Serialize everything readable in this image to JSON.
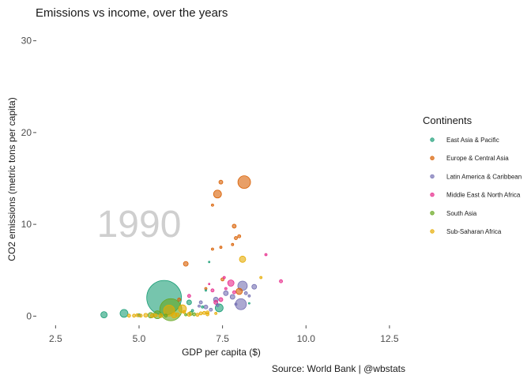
{
  "chart_data": {
    "type": "scatter",
    "title": "Emissions vs income, over the years",
    "xlabel": "GDP per capita ($)",
    "ylabel": "CO2 emissions (metric tons per capita)",
    "caption": "Source: World Bank | @wbstats",
    "annotation": "1990",
    "xlim": [
      1.9,
      13.0
    ],
    "ylim": [
      -1.0,
      31.0
    ],
    "x_ticks": [
      2.5,
      5.0,
      7.5,
      10.0,
      12.5
    ],
    "x_tick_labels": [
      "2.5",
      "5.0",
      "7.5",
      "10.0",
      "12.5"
    ],
    "y_ticks": [
      0,
      10,
      20,
      30
    ],
    "y_tick_labels": [
      "0",
      "10",
      "20",
      "30"
    ],
    "grid": false,
    "legend": {
      "title": "Continents",
      "position": "right",
      "entries": [
        {
          "key": "eap",
          "label": "East Asia & Pacific",
          "color": "#1B9E77"
        },
        {
          "key": "eca",
          "label": "Europe & Central Asia",
          "color": "#D95F02"
        },
        {
          "key": "lac",
          "label": "Latin America & Caribbean",
          "color": "#7570B3"
        },
        {
          "key": "mena",
          "label": "Middle East & North Africa",
          "color": "#E7298A"
        },
        {
          "key": "sa",
          "label": "South Asia",
          "color": "#66A61E"
        },
        {
          "key": "ssa",
          "label": "Sub-Saharan Africa",
          "color": "#E6AB02"
        }
      ]
    },
    "series": [
      {
        "key": "eap",
        "points": [
          {
            "x": 5.75,
            "y": 2.0,
            "size": 22
          },
          {
            "x": 3.95,
            "y": 0.15,
            "size": 4
          },
          {
            "x": 4.55,
            "y": 0.3,
            "size": 5
          },
          {
            "x": 7.4,
            "y": 0.9,
            "size": 5
          },
          {
            "x": 7.1,
            "y": 5.9,
            "size": 1
          },
          {
            "x": 6.5,
            "y": 1.5,
            "size": 3
          },
          {
            "x": 7.0,
            "y": 2.8,
            "size": 1
          },
          {
            "x": 8.3,
            "y": 1.4,
            "size": 1
          },
          {
            "x": 6.9,
            "y": 1.0,
            "size": 1.5
          },
          {
            "x": 5.0,
            "y": 0.1,
            "size": 2
          },
          {
            "x": 6.6,
            "y": 0.6,
            "size": 1.5
          }
        ]
      },
      {
        "key": "eca",
        "points": [
          {
            "x": 8.15,
            "y": 14.6,
            "size": 8
          },
          {
            "x": 7.35,
            "y": 13.3,
            "size": 5
          },
          {
            "x": 7.45,
            "y": 14.6,
            "size": 2.5
          },
          {
            "x": 7.2,
            "y": 12.1,
            "size": 1.5
          },
          {
            "x": 7.85,
            "y": 9.8,
            "size": 2.5
          },
          {
            "x": 8.0,
            "y": 8.7,
            "size": 2
          },
          {
            "x": 7.9,
            "y": 8.5,
            "size": 2
          },
          {
            "x": 7.8,
            "y": 7.8,
            "size": 1.5
          },
          {
            "x": 7.45,
            "y": 7.5,
            "size": 1.5
          },
          {
            "x": 7.2,
            "y": 7.3,
            "size": 1.5
          },
          {
            "x": 6.4,
            "y": 5.7,
            "size": 3
          },
          {
            "x": 8.0,
            "y": 2.7,
            "size": 4
          },
          {
            "x": 7.5,
            "y": 4.0,
            "size": 2
          },
          {
            "x": 7.0,
            "y": 3.0,
            "size": 1.5
          },
          {
            "x": 6.2,
            "y": 1.8,
            "size": 2
          }
        ]
      },
      {
        "key": "lac",
        "points": [
          {
            "x": 8.05,
            "y": 1.3,
            "size": 7
          },
          {
            "x": 8.1,
            "y": 3.3,
            "size": 6
          },
          {
            "x": 8.45,
            "y": 3.2,
            "size": 3
          },
          {
            "x": 7.6,
            "y": 2.5,
            "size": 3
          },
          {
            "x": 7.8,
            "y": 2.1,
            "size": 3
          },
          {
            "x": 7.3,
            "y": 1.8,
            "size": 3
          },
          {
            "x": 7.0,
            "y": 1.0,
            "size": 2.5
          },
          {
            "x": 6.85,
            "y": 1.5,
            "size": 2
          },
          {
            "x": 7.15,
            "y": 0.7,
            "size": 2
          },
          {
            "x": 8.2,
            "y": 2.5,
            "size": 2
          },
          {
            "x": 7.35,
            "y": 1.2,
            "size": 2
          },
          {
            "x": 7.9,
            "y": 1.3,
            "size": 1.5
          },
          {
            "x": 8.3,
            "y": 2.2,
            "size": 1.5
          },
          {
            "x": 6.8,
            "y": 1.1,
            "size": 1.5
          }
        ]
      },
      {
        "key": "mena",
        "points": [
          {
            "x": 9.25,
            "y": 3.8,
            "size": 2
          },
          {
            "x": 8.8,
            "y": 6.7,
            "size": 1.5
          },
          {
            "x": 7.75,
            "y": 3.6,
            "size": 4
          },
          {
            "x": 7.45,
            "y": 1.8,
            "size": 2.5
          },
          {
            "x": 7.3,
            "y": 1.5,
            "size": 2.5
          },
          {
            "x": 7.85,
            "y": 2.6,
            "size": 2
          },
          {
            "x": 7.2,
            "y": 2.8,
            "size": 2
          },
          {
            "x": 6.5,
            "y": 2.2,
            "size": 2
          },
          {
            "x": 7.55,
            "y": 4.2,
            "size": 1.5
          },
          {
            "x": 7.1,
            "y": 3.5,
            "size": 1
          },
          {
            "x": 7.6,
            "y": 3.0,
            "size": 1.5
          }
        ]
      },
      {
        "key": "sa",
        "points": [
          {
            "x": 5.95,
            "y": 0.7,
            "size": 14
          },
          {
            "x": 5.55,
            "y": 0.15,
            "size": 5
          },
          {
            "x": 5.35,
            "y": 0.1,
            "size": 3.5
          },
          {
            "x": 6.55,
            "y": 0.3,
            "size": 2.5
          },
          {
            "x": 6.65,
            "y": 0.2,
            "size": 2
          },
          {
            "x": 5.8,
            "y": 0.05,
            "size": 2
          },
          {
            "x": 6.4,
            "y": 0.15,
            "size": 1.5
          }
        ]
      },
      {
        "key": "ssa",
        "points": [
          {
            "x": 8.1,
            "y": 6.2,
            "size": 4
          },
          {
            "x": 6.3,
            "y": 0.8,
            "size": 5
          },
          {
            "x": 5.9,
            "y": 0.6,
            "size": 7
          },
          {
            "x": 5.2,
            "y": 0.1,
            "size": 2.5
          },
          {
            "x": 5.4,
            "y": 0.05,
            "size": 2.5
          },
          {
            "x": 5.65,
            "y": 0.05,
            "size": 2.5
          },
          {
            "x": 6.05,
            "y": 0.1,
            "size": 3.5
          },
          {
            "x": 6.15,
            "y": 0.15,
            "size": 2.5
          },
          {
            "x": 6.5,
            "y": 0.2,
            "size": 2.5
          },
          {
            "x": 6.75,
            "y": 0.15,
            "size": 2
          },
          {
            "x": 6.85,
            "y": 0.3,
            "size": 2
          },
          {
            "x": 7.05,
            "y": 0.2,
            "size": 2
          },
          {
            "x": 4.85,
            "y": 0.05,
            "size": 2
          },
          {
            "x": 4.7,
            "y": 0.05,
            "size": 2
          },
          {
            "x": 5.05,
            "y": 0.05,
            "size": 2
          },
          {
            "x": 4.95,
            "y": 0.1,
            "size": 2
          },
          {
            "x": 5.5,
            "y": 0.1,
            "size": 2
          },
          {
            "x": 6.35,
            "y": 0.45,
            "size": 2
          },
          {
            "x": 7.3,
            "y": 0.3,
            "size": 1.5
          },
          {
            "x": 8.65,
            "y": 4.2,
            "size": 1.5
          },
          {
            "x": 7.05,
            "y": 0.4,
            "size": 2
          },
          {
            "x": 6.95,
            "y": 0.35,
            "size": 2
          }
        ]
      }
    ]
  }
}
